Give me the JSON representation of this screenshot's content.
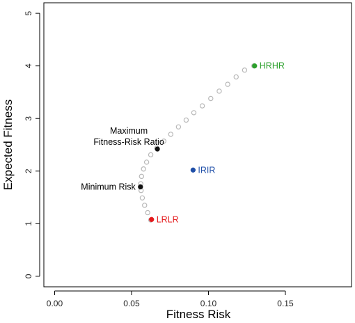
{
  "chart_data": {
    "type": "scatter",
    "xlabel": "Fitness Risk",
    "ylabel": "Expected Fitness",
    "xlim": [
      -0.007,
      0.193
    ],
    "ylim": [
      -0.2,
      5.2
    ],
    "x_ticks": [
      0.0,
      0.05,
      0.1,
      0.15
    ],
    "x_tick_labels": [
      "0.00",
      "0.05",
      "0.10",
      "0.15"
    ],
    "y_ticks": [
      0,
      1,
      2,
      3,
      4,
      5
    ],
    "y_tick_labels": [
      "0",
      "1",
      "2",
      "3",
      "4",
      "5"
    ],
    "grid": false,
    "frontier": {
      "marker": "open-circle",
      "color": "#b8b8b8",
      "points": [
        {
          "x": 0.0625,
          "y": 1.07
        },
        {
          "x": 0.0605,
          "y": 1.21
        },
        {
          "x": 0.0585,
          "y": 1.35
        },
        {
          "x": 0.057,
          "y": 1.49
        },
        {
          "x": 0.0562,
          "y": 1.63
        },
        {
          "x": 0.056,
          "y": 1.76
        },
        {
          "x": 0.0565,
          "y": 1.9
        },
        {
          "x": 0.0578,
          "y": 2.04
        },
        {
          "x": 0.0598,
          "y": 2.17
        },
        {
          "x": 0.0625,
          "y": 2.31
        },
        {
          "x": 0.0665,
          "y": 2.44
        },
        {
          "x": 0.071,
          "y": 2.57
        },
        {
          "x": 0.0755,
          "y": 2.7
        },
        {
          "x": 0.0805,
          "y": 2.84
        },
        {
          "x": 0.0855,
          "y": 2.97
        },
        {
          "x": 0.0905,
          "y": 3.11
        },
        {
          "x": 0.096,
          "y": 3.24
        },
        {
          "x": 0.1015,
          "y": 3.38
        },
        {
          "x": 0.107,
          "y": 3.52
        },
        {
          "x": 0.1125,
          "y": 3.65
        },
        {
          "x": 0.118,
          "y": 3.79
        },
        {
          "x": 0.1235,
          "y": 3.92
        },
        {
          "x": 0.1295,
          "y": 4.0
        }
      ]
    },
    "points": [
      {
        "label": "HRHR",
        "x": 0.13,
        "y": 4.0,
        "color": "#2ca02c",
        "label_side": "right"
      },
      {
        "label": "IRIR",
        "x": 0.09,
        "y": 2.02,
        "color": "#1f4fa8",
        "label_side": "right"
      },
      {
        "label": "LRLR",
        "x": 0.063,
        "y": 1.08,
        "color": "#e41a1c",
        "label_side": "right"
      },
      {
        "label": "Minimum Risk",
        "x": 0.0558,
        "y": 1.7,
        "color": "#111111",
        "label_side": "left"
      },
      {
        "label": "Maximum\nFitness-Risk Ratio",
        "x": 0.0668,
        "y": 2.42,
        "color": "#111111",
        "label_side": "left-above"
      }
    ]
  }
}
